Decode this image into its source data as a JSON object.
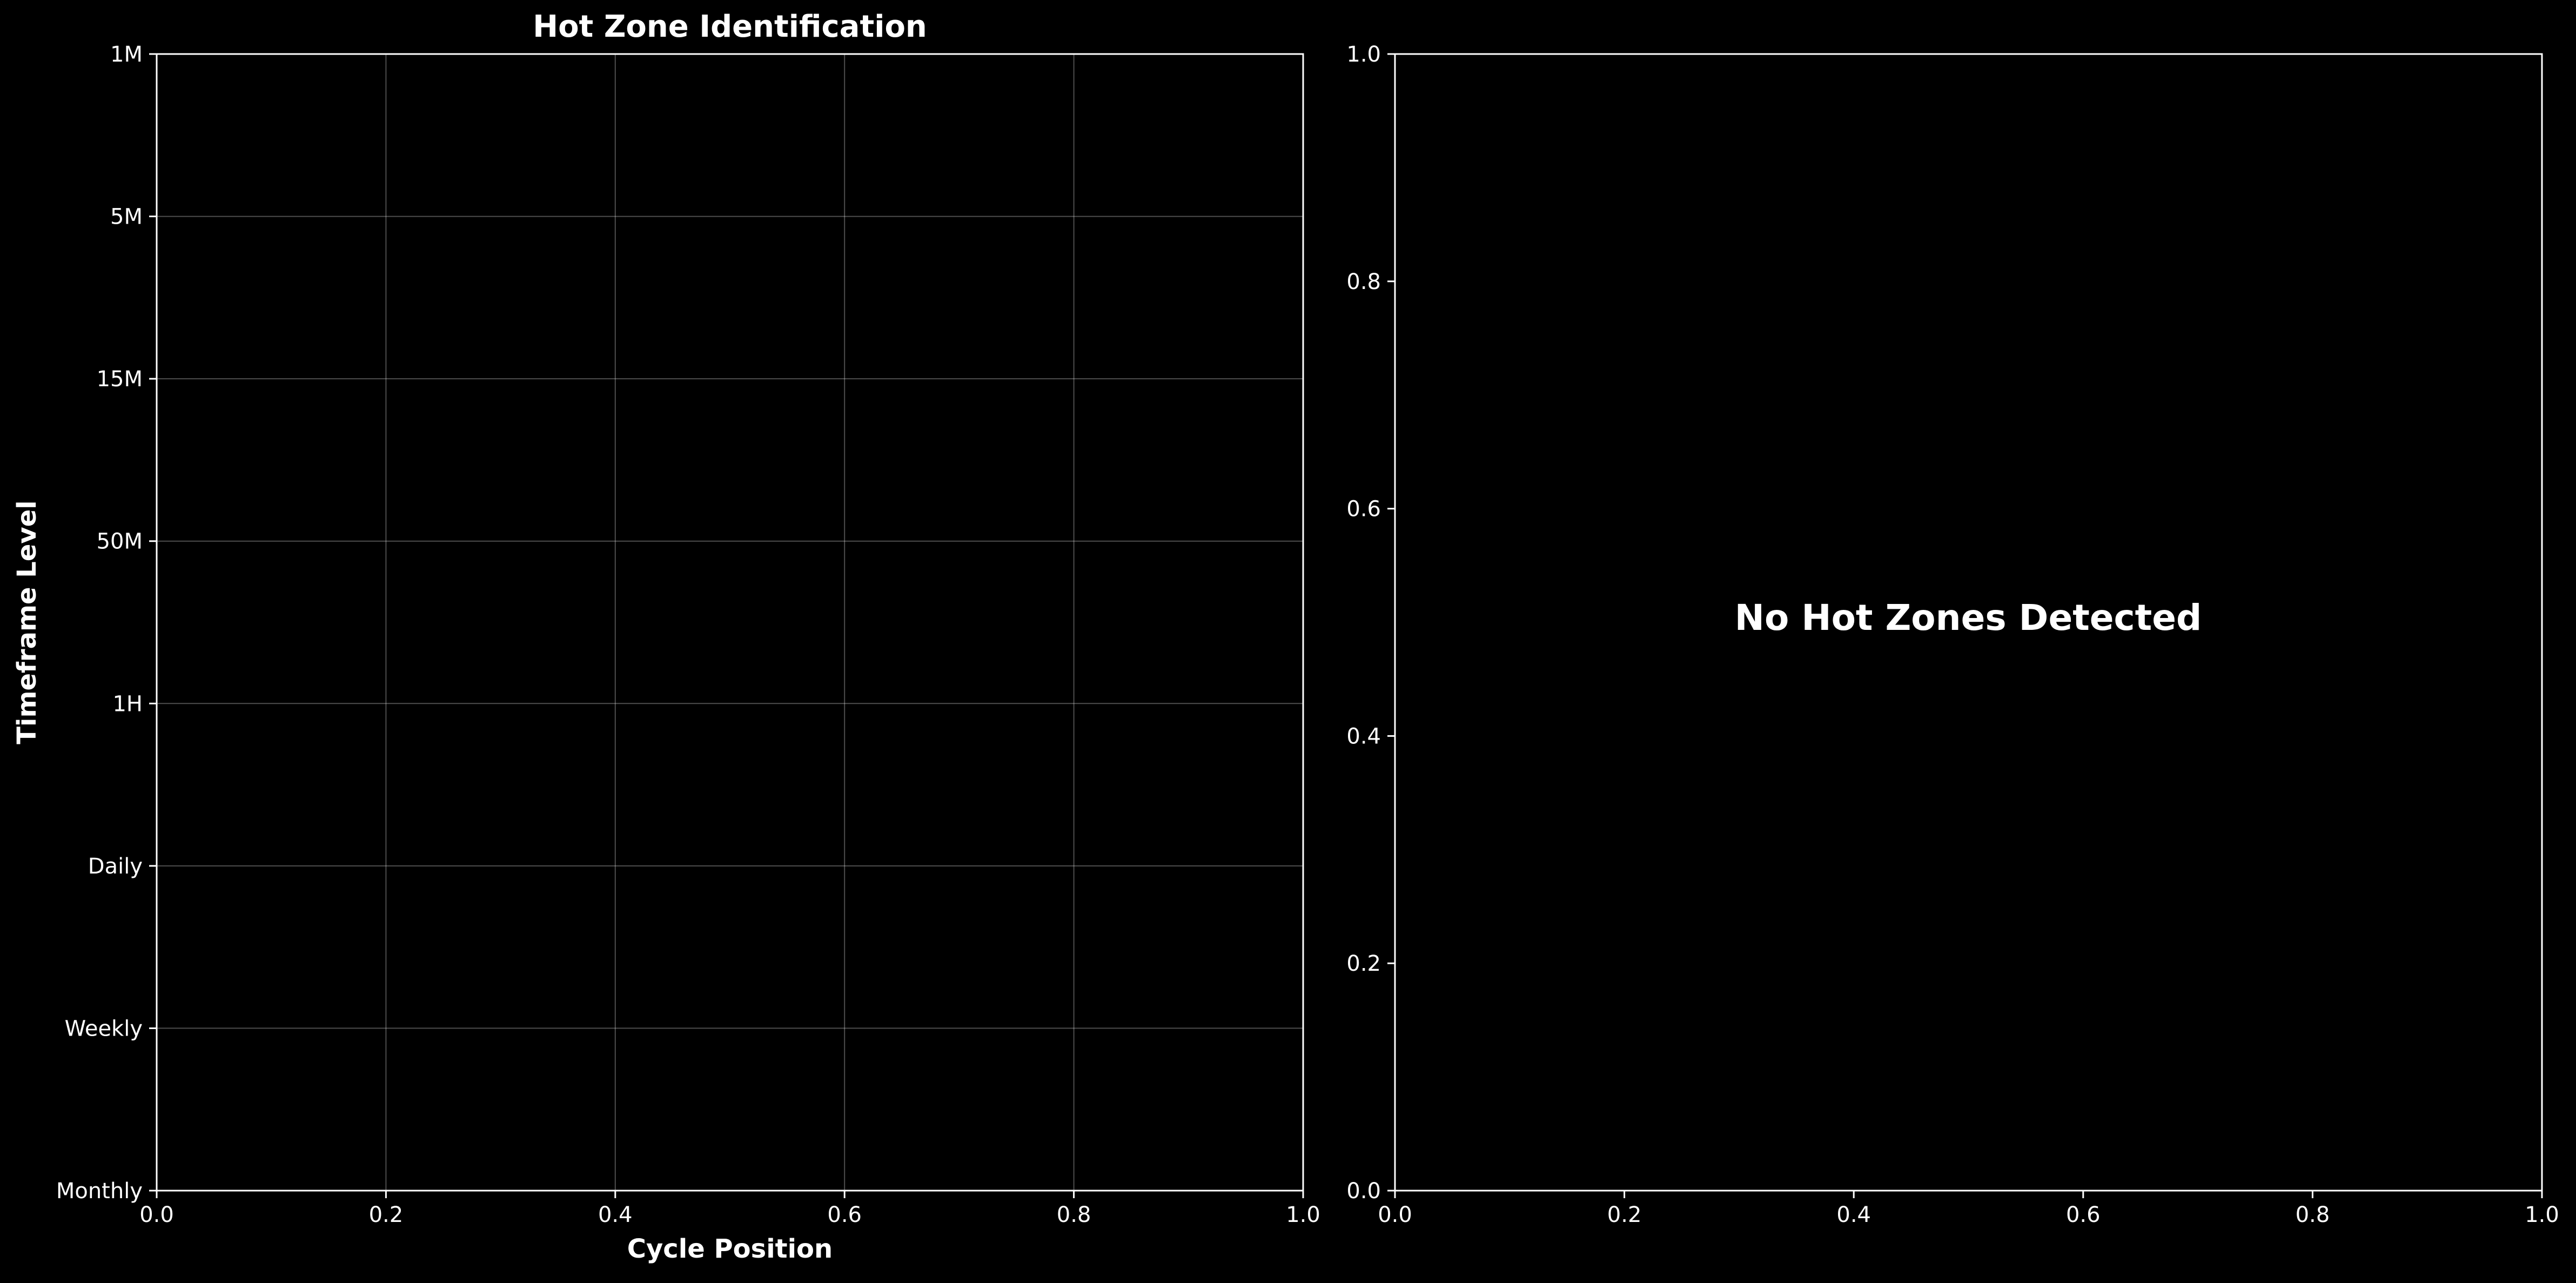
{
  "colors": {
    "background": "#000000",
    "axis": "#ffffff",
    "grid": "#ffffff",
    "text": "#ffffff"
  },
  "chart_data": [
    {
      "type": "scatter",
      "title": "Hot Zone Identification",
      "xlabel": "Cycle Position",
      "ylabel": "Timeframe Level",
      "xlim": [
        0.0,
        1.0
      ],
      "x_ticks": [
        "0.0",
        "0.2",
        "0.4",
        "0.6",
        "0.8",
        "1.0"
      ],
      "y_ticks": [
        "1M",
        "5M",
        "15M",
        "50M",
        "1H",
        "Daily",
        "Weekly",
        "Monthly"
      ],
      "grid": true,
      "series": []
    },
    {
      "type": "scatter",
      "title": "",
      "xlim": [
        0.0,
        1.0
      ],
      "ylim": [
        0.0,
        1.0
      ],
      "x_ticks": [
        "0.0",
        "0.2",
        "0.4",
        "0.6",
        "0.8",
        "1.0"
      ],
      "y_ticks": [
        "0.0",
        "0.2",
        "0.4",
        "0.6",
        "0.8",
        "1.0"
      ],
      "grid": false,
      "annotation": "No Hot Zones Detected",
      "series": []
    }
  ]
}
